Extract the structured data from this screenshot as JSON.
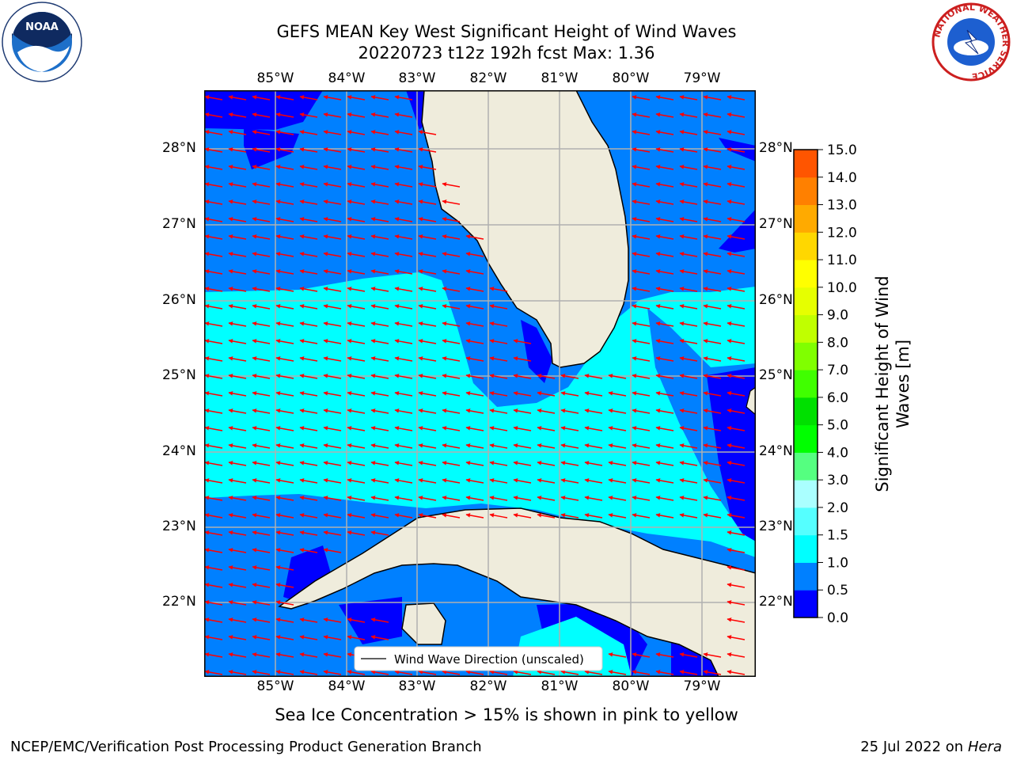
{
  "header": {
    "title_line1": "GEFS MEAN Key West Significant Height of Wind Waves",
    "title_line2": "20220723 t12z 192h fcst   Max: 1.36"
  },
  "logos": {
    "left": {
      "icon": "noaa-logo-icon",
      "text": "NOAA"
    },
    "right": {
      "icon": "nws-logo-icon",
      "ring_text": "NATIONAL WEATHER SERVICE"
    }
  },
  "map": {
    "lon_labels": [
      "85°W",
      "84°W",
      "83°W",
      "82°W",
      "81°W",
      "80°W",
      "79°W"
    ],
    "lat_labels": [
      "28°N",
      "27°N",
      "26°N",
      "25°N",
      "24°N",
      "23°N",
      "22°N"
    ],
    "legend_label": "Wind Wave Direction (unscaled)",
    "colors": {
      "land": "#efecdc",
      "ocean_low": "#0000ff",
      "ocean_mid": "#0080ff",
      "ocean_high": "#00ffff",
      "arrows": "#ff0000",
      "grid": "#b0b0b0"
    }
  },
  "colorbar": {
    "label_line1": "Significant Height of Wind",
    "label_line2": "Waves [m]",
    "ticks": [
      "15.0",
      "14.0",
      "13.0",
      "12.0",
      "11.0",
      "10.0",
      "9.0",
      "8.0",
      "7.0",
      "6.0",
      "5.0",
      "4.0",
      "3.0",
      "2.0",
      "1.5",
      "1.0",
      "0.5",
      "0.0"
    ],
    "bin_colors": [
      "#0000ff",
      "#0080ff",
      "#00ffff",
      "#55ffff",
      "#aaffff",
      "#55ff80",
      "#00ff00",
      "#00e000",
      "#40ff00",
      "#80ff00",
      "#c0ff00",
      "#e6ff00",
      "#ffff00",
      "#ffd700",
      "#ffaa00",
      "#ff8000",
      "#ff5500",
      "#ff2a00",
      "#ff0000"
    ]
  },
  "notes": {
    "sea_ice": "Sea Ice Concentration > 15% is shown in pink to yellow"
  },
  "footer": {
    "left": "NCEP/EMC/Verification Post Processing Product Generation Branch",
    "right_date": "25 Jul 2022 on ",
    "right_system": "Hera"
  }
}
